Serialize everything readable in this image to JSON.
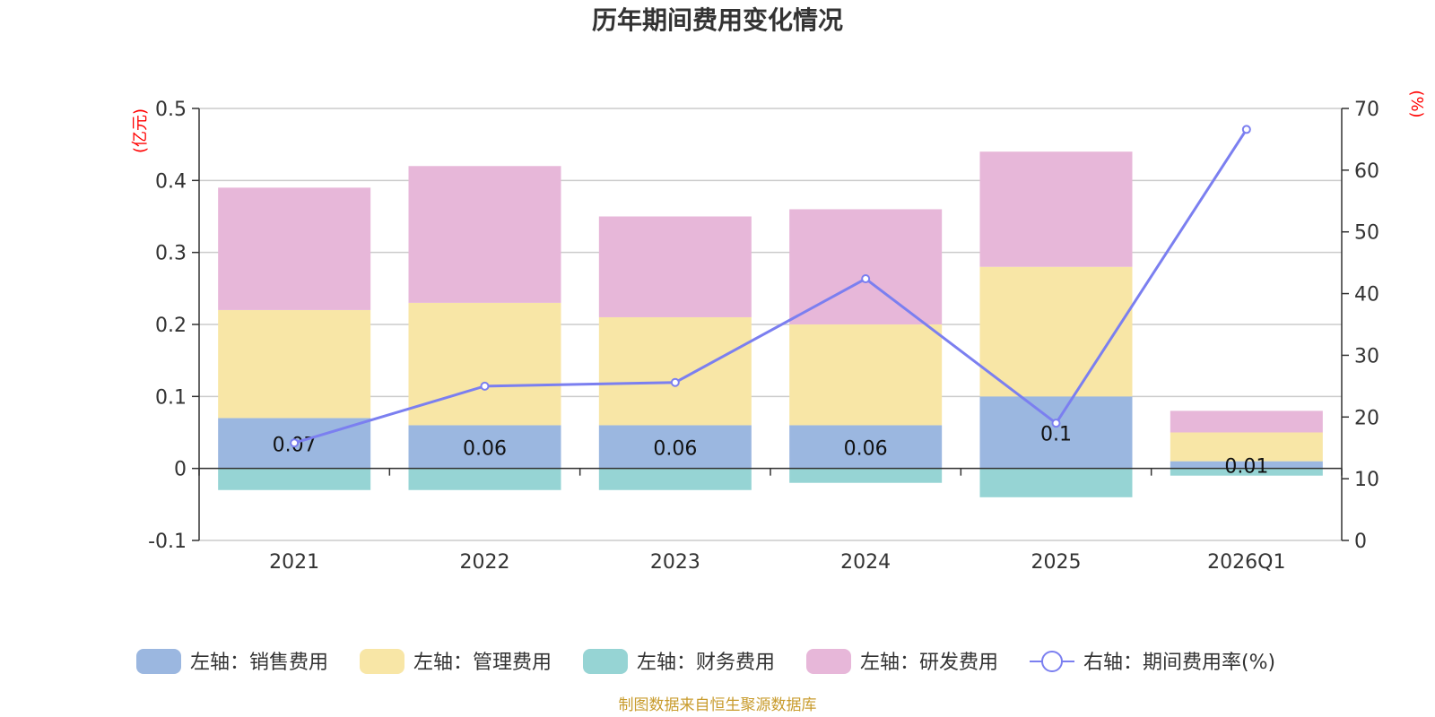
{
  "chart_data": {
    "type": "bar",
    "stacked": true,
    "title": "历年期间费用变化情况",
    "categories": [
      "2021",
      "2022",
      "2023",
      "2024",
      "2025",
      "2026Q1"
    ],
    "left_axis": {
      "unit": "(亿元)",
      "ylim": [
        -0.1,
        0.5
      ],
      "ticks": [
        "-0.1",
        "0",
        "0.1",
        "0.2",
        "0.3",
        "0.4",
        "0.5"
      ]
    },
    "right_axis": {
      "unit": "(%)",
      "ylim": [
        0,
        70
      ],
      "ticks": [
        "0",
        "10",
        "20",
        "30",
        "40",
        "50",
        "60",
        "70"
      ]
    },
    "series": [
      {
        "name": "左轴：销售费用",
        "axis": "left",
        "color": "#9bb7e0",
        "values": [
          0.07,
          0.06,
          0.06,
          0.06,
          0.1,
          0.01
        ],
        "labels": [
          "0.07",
          "0.06",
          "0.06",
          "0.06",
          "0.1",
          "0.01"
        ]
      },
      {
        "name": "左轴：管理费用",
        "axis": "left",
        "color": "#f8e6a6",
        "values": [
          0.15,
          0.17,
          0.15,
          0.14,
          0.18,
          0.04
        ]
      },
      {
        "name": "左轴：财务费用",
        "axis": "left",
        "color": "#96d4d4",
        "values": [
          -0.03,
          -0.03,
          -0.03,
          -0.02,
          -0.04,
          -0.01
        ]
      },
      {
        "name": "左轴：研发费用",
        "axis": "left",
        "color": "#e7b7d9",
        "values": [
          0.17,
          0.19,
          0.14,
          0.16,
          0.16,
          0.03
        ]
      },
      {
        "name": "右轴：期间费用率(%)",
        "axis": "right",
        "type": "line",
        "color": "#7b7ff0",
        "values": [
          15.8,
          25.0,
          25.6,
          42.4,
          19.0,
          66.6
        ]
      }
    ],
    "source": "制图数据来自恒生聚源数据库"
  }
}
